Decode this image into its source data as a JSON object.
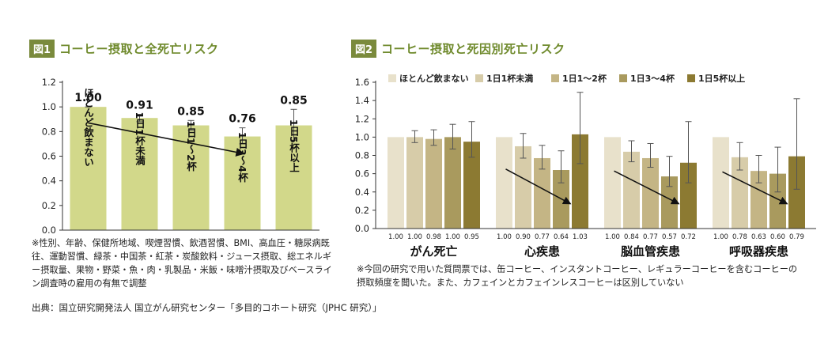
{
  "fig1": {
    "badge": "図1",
    "title": "コーヒー摂取と全死亡リスク",
    "note": "※性別、年齢、保健所地域、喫煙習慣、飲酒習慣、BMI、高血圧・糖尿病既往、運動習慣、緑茶・中国茶・紅茶・炭酸飲料・ジュース摂取、総エネルギー摂取量、果物・野菜・魚・肉・乳製品・米飯・味噌汁摂取及びベースライン調査時の雇用の有無で調整"
  },
  "fig2": {
    "badge": "図2",
    "title": "コーヒー摂取と死因別死亡リスク",
    "note": "※今回の研究で用いた質問票では、缶コーヒー、インスタントコーヒー、レギュラーコーヒーを含むコーヒーの摂取頻度を聞いた。また、カフェインとカフェインレスコーヒーは区別していない"
  },
  "source": "出典：国立研究開発法人 国立がん研究センター「多目的コホート研究（JPHC 研究）」",
  "colors": {
    "title_green": "#6f8a2c",
    "badge": "#7a8a3c",
    "fig1_bar": "#d2d88a",
    "fig2_series": [
      "#e8e1cb",
      "#d7cca9",
      "#c4b585",
      "#a99a5e",
      "#8c7a32"
    ]
  },
  "chart_data": [
    {
      "type": "bar",
      "categories": [
        "ほとんど飲まない",
        "1日1杯未満",
        "1日1〜2杯",
        "1日3〜4杯",
        "1日5杯以上"
      ],
      "values": [
        1.0,
        0.91,
        0.85,
        0.76,
        0.85
      ],
      "value_labels": [
        "1.00",
        "0.91",
        "0.85",
        "0.76",
        "0.85"
      ],
      "error_low": [
        1.0,
        0.88,
        0.81,
        0.7,
        0.73
      ],
      "error_high": [
        1.0,
        0.94,
        0.89,
        0.83,
        0.98
      ],
      "yticks": [
        "0.0",
        "0.2",
        "0.4",
        "0.6",
        "0.8",
        "1.0",
        "1.2"
      ],
      "ylim": [
        0,
        1.2
      ],
      "trend_arrow": {
        "from": [
          0,
          0.87
        ],
        "to": [
          3,
          0.62
        ]
      }
    },
    {
      "type": "bar",
      "categories": [
        "がん死亡",
        "心疾患",
        "脳血管疾患",
        "呼吸器疾患"
      ],
      "series": [
        {
          "name": "ほとんど飲まない",
          "values": [
            1.0,
            1.0,
            1.0,
            1.0
          ],
          "low": [
            1.0,
            1.0,
            1.0,
            1.0
          ],
          "high": [
            1.0,
            1.0,
            1.0,
            1.0
          ]
        },
        {
          "name": "1日1杯未満",
          "values": [
            1.0,
            0.9,
            0.84,
            0.78
          ],
          "low": [
            0.94,
            0.77,
            0.73,
            0.64
          ],
          "high": [
            1.07,
            1.04,
            0.96,
            0.94
          ]
        },
        {
          "name": "1日1〜2杯",
          "values": [
            0.98,
            0.77,
            0.77,
            0.63
          ],
          "low": [
            0.91,
            0.65,
            0.67,
            0.5
          ],
          "high": [
            1.08,
            0.91,
            0.93,
            0.8
          ]
        },
        {
          "name": "1日3〜4杯",
          "values": [
            1.0,
            0.64,
            0.57,
            0.6
          ],
          "low": [
            0.87,
            0.5,
            0.46,
            0.4
          ],
          "high": [
            1.14,
            0.85,
            0.79,
            0.89
          ]
        },
        {
          "name": "1日5杯以上",
          "values": [
            0.95,
            1.03,
            0.72,
            0.79
          ],
          "low": [
            0.78,
            0.71,
            0.5,
            0.43
          ],
          "high": [
            1.17,
            1.49,
            1.17,
            1.42
          ]
        }
      ],
      "value_labels": [
        [
          "1.00",
          "1.00",
          "0.98",
          "1.00",
          "0.95"
        ],
        [
          "1.00",
          "0.90",
          "0.77",
          "0.64",
          "1.03"
        ],
        [
          "1.00",
          "0.84",
          "0.77",
          "0.57",
          "0.72"
        ],
        [
          "1.00",
          "0.78",
          "0.63",
          "0.60",
          "0.79"
        ]
      ],
      "yticks": [
        "0.0",
        "0.2",
        "0.4",
        "0.6",
        "0.8",
        "1.0",
        "1.2",
        "1.4",
        "1.6"
      ],
      "ylim": [
        0,
        1.6
      ],
      "trend_arrows": [
        {
          "group": 1,
          "from": [
            0,
            0.65
          ],
          "to": [
            3,
            0.27
          ]
        },
        {
          "group": 2,
          "from": [
            0,
            0.63
          ],
          "to": [
            3,
            0.27
          ]
        },
        {
          "group": 3,
          "from": [
            0,
            0.62
          ],
          "to": [
            3,
            0.27
          ]
        }
      ]
    }
  ]
}
